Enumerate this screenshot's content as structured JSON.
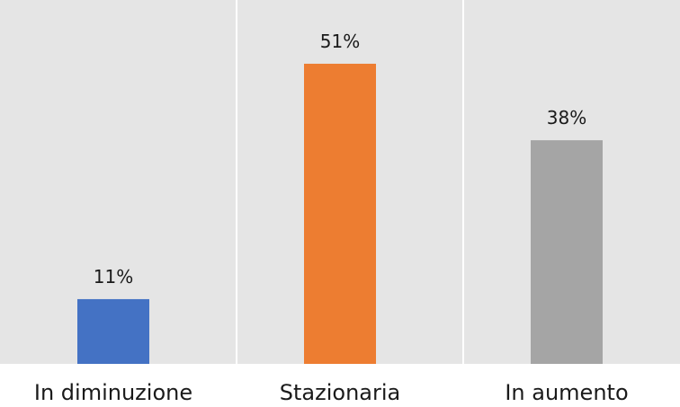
{
  "chart_data": {
    "type": "bar",
    "categories": [
      "In diminuzione",
      "Stazionaria",
      "In aumento"
    ],
    "values": [
      11,
      51,
      38
    ],
    "data_labels": [
      "11%",
      "51%",
      "38%"
    ],
    "colors": [
      "#4472c4",
      "#ed7d31",
      "#a5a5a5"
    ],
    "background": "#e5e5e5",
    "ylim": [
      0,
      60
    ],
    "grid": false,
    "legend": "none",
    "title": "",
    "xlabel": "",
    "ylabel": ""
  }
}
